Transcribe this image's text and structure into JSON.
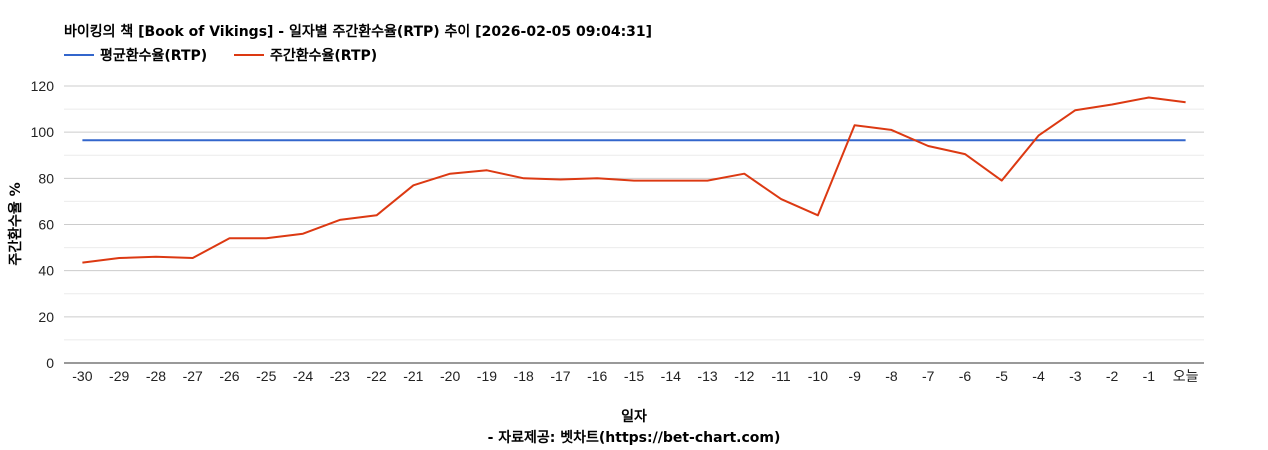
{
  "chart_data": {
    "type": "line",
    "title": "바이킹의 책 [Book of Vikings] - 일자별 주간환수율(RTP) 추이 [2026-02-05 09:04:31]",
    "xlabel": "일자",
    "ylabel": "주간환수율 %",
    "source": "- 자료제공: 벳차트(https://bet-chart.com)",
    "ylim": [
      0,
      120
    ],
    "yticks": [
      0,
      20,
      40,
      60,
      80,
      100,
      120
    ],
    "grid": true,
    "legend_position": "top-left",
    "categories": [
      "-30",
      "-29",
      "-28",
      "-27",
      "-26",
      "-25",
      "-24",
      "-23",
      "-22",
      "-21",
      "-20",
      "-19",
      "-18",
      "-17",
      "-16",
      "-15",
      "-14",
      "-13",
      "-12",
      "-11",
      "-10",
      "-9",
      "-8",
      "-7",
      "-6",
      "-5",
      "-4",
      "-3",
      "-2",
      "-1",
      "오늘"
    ],
    "series": [
      {
        "name": "평균환수율(RTP)",
        "color": "#3366cc",
        "values": [
          96.5,
          96.5,
          96.5,
          96.5,
          96.5,
          96.5,
          96.5,
          96.5,
          96.5,
          96.5,
          96.5,
          96.5,
          96.5,
          96.5,
          96.5,
          96.5,
          96.5,
          96.5,
          96.5,
          96.5,
          96.5,
          96.5,
          96.5,
          96.5,
          96.5,
          96.5,
          96.5,
          96.5,
          96.5,
          96.5,
          96.5
        ]
      },
      {
        "name": "주간환수율(RTP)",
        "color": "#dc3912",
        "values": [
          43.5,
          45.5,
          46,
          45.5,
          54,
          54,
          56,
          62,
          64,
          77,
          82,
          83.5,
          80,
          79.5,
          80,
          79,
          79,
          79,
          82,
          71,
          64,
          103,
          101,
          94,
          90.5,
          79,
          98.5,
          109.5,
          112,
          115,
          113
        ]
      }
    ]
  }
}
